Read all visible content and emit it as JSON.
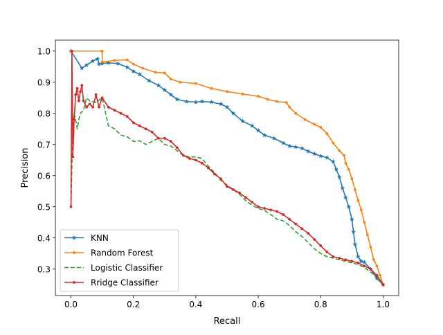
{
  "chart_data": {
    "type": "line",
    "title": "",
    "xlabel": "Recall",
    "ylabel": "Precision",
    "xlim": [
      -0.05,
      1.05
    ],
    "ylim": [
      0.215,
      1.035
    ],
    "xticks": [
      0.0,
      0.2,
      0.4,
      0.6,
      0.8,
      1.0
    ],
    "xtick_labels": [
      "0.0",
      "0.2",
      "0.4",
      "0.6",
      "0.8",
      "1.0"
    ],
    "yticks": [
      0.3,
      0.4,
      0.5,
      0.6,
      0.7,
      0.8,
      0.9,
      1.0
    ],
    "ytick_labels": [
      "0.3",
      "0.4",
      "0.5",
      "0.6",
      "0.7",
      "0.8",
      "0.9",
      "1.0"
    ],
    "grid": false,
    "legend_position": "lower-left",
    "series": [
      {
        "name": "KNN",
        "color": "#1f77b4",
        "linestyle": "solid",
        "marker": "star",
        "points": [
          [
            0.0,
            1.0
          ],
          [
            0.035,
            0.945
          ],
          [
            0.05,
            0.955
          ],
          [
            0.07,
            0.968
          ],
          [
            0.085,
            0.975
          ],
          [
            0.09,
            0.958
          ],
          [
            0.1,
            0.96
          ],
          [
            0.12,
            0.962
          ],
          [
            0.15,
            0.96
          ],
          [
            0.18,
            0.948
          ],
          [
            0.2,
            0.935
          ],
          [
            0.22,
            0.925
          ],
          [
            0.25,
            0.905
          ],
          [
            0.28,
            0.89
          ],
          [
            0.3,
            0.875
          ],
          [
            0.32,
            0.86
          ],
          [
            0.34,
            0.845
          ],
          [
            0.37,
            0.838
          ],
          [
            0.4,
            0.836
          ],
          [
            0.42,
            0.838
          ],
          [
            0.45,
            0.836
          ],
          [
            0.48,
            0.83
          ],
          [
            0.5,
            0.82
          ],
          [
            0.52,
            0.8
          ],
          [
            0.55,
            0.775
          ],
          [
            0.58,
            0.76
          ],
          [
            0.6,
            0.745
          ],
          [
            0.62,
            0.73
          ],
          [
            0.65,
            0.72
          ],
          [
            0.68,
            0.705
          ],
          [
            0.7,
            0.695
          ],
          [
            0.72,
            0.692
          ],
          [
            0.74,
            0.688
          ],
          [
            0.76,
            0.678
          ],
          [
            0.78,
            0.67
          ],
          [
            0.8,
            0.663
          ],
          [
            0.82,
            0.658
          ],
          [
            0.84,
            0.645
          ],
          [
            0.85,
            0.62
          ],
          [
            0.86,
            0.595
          ],
          [
            0.87,
            0.56
          ],
          [
            0.88,
            0.53
          ],
          [
            0.89,
            0.5
          ],
          [
            0.9,
            0.46
          ],
          [
            0.905,
            0.42
          ],
          [
            0.91,
            0.38
          ],
          [
            0.92,
            0.34
          ],
          [
            0.93,
            0.325
          ],
          [
            0.94,
            0.322
          ],
          [
            0.96,
            0.3
          ],
          [
            0.98,
            0.27
          ],
          [
            1.0,
            0.25
          ]
        ]
      },
      {
        "name": "Random Forest",
        "color": "#ff7f0e",
        "linestyle": "solid",
        "marker": "point",
        "points": [
          [
            0.0,
            1.0
          ],
          [
            0.1,
            1.0
          ],
          [
            0.1,
            0.965
          ],
          [
            0.14,
            0.97
          ],
          [
            0.18,
            0.972
          ],
          [
            0.2,
            0.958
          ],
          [
            0.23,
            0.945
          ],
          [
            0.27,
            0.932
          ],
          [
            0.3,
            0.93
          ],
          [
            0.32,
            0.91
          ],
          [
            0.35,
            0.9
          ],
          [
            0.4,
            0.896
          ],
          [
            0.45,
            0.88
          ],
          [
            0.5,
            0.87
          ],
          [
            0.55,
            0.862
          ],
          [
            0.6,
            0.855
          ],
          [
            0.63,
            0.845
          ],
          [
            0.66,
            0.838
          ],
          [
            0.69,
            0.835
          ],
          [
            0.7,
            0.82
          ],
          [
            0.72,
            0.8
          ],
          [
            0.75,
            0.78
          ],
          [
            0.78,
            0.765
          ],
          [
            0.8,
            0.755
          ],
          [
            0.82,
            0.735
          ],
          [
            0.84,
            0.705
          ],
          [
            0.86,
            0.68
          ],
          [
            0.875,
            0.665
          ],
          [
            0.88,
            0.64
          ],
          [
            0.89,
            0.62
          ],
          [
            0.9,
            0.59
          ],
          [
            0.91,
            0.555
          ],
          [
            0.92,
            0.52
          ],
          [
            0.93,
            0.49
          ],
          [
            0.94,
            0.45
          ],
          [
            0.95,
            0.41
          ],
          [
            0.96,
            0.37
          ],
          [
            0.97,
            0.33
          ],
          [
            0.98,
            0.31
          ],
          [
            0.99,
            0.28
          ],
          [
            1.0,
            0.25
          ]
        ]
      },
      {
        "name": "Logistic Classifier",
        "color": "#2ca02c",
        "linestyle": "dashed",
        "marker": "none",
        "points": [
          [
            0.0,
            0.5
          ],
          [
            0.005,
            0.72
          ],
          [
            0.01,
            0.8
          ],
          [
            0.015,
            0.78
          ],
          [
            0.02,
            0.75
          ],
          [
            0.025,
            0.78
          ],
          [
            0.03,
            0.8
          ],
          [
            0.04,
            0.81
          ],
          [
            0.05,
            0.85
          ],
          [
            0.06,
            0.84
          ],
          [
            0.08,
            0.835
          ],
          [
            0.1,
            0.85
          ],
          [
            0.12,
            0.76
          ],
          [
            0.14,
            0.75
          ],
          [
            0.16,
            0.73
          ],
          [
            0.18,
            0.725
          ],
          [
            0.2,
            0.71
          ],
          [
            0.22,
            0.712
          ],
          [
            0.24,
            0.7
          ],
          [
            0.26,
            0.71
          ],
          [
            0.28,
            0.72
          ],
          [
            0.3,
            0.7
          ],
          [
            0.32,
            0.695
          ],
          [
            0.34,
            0.68
          ],
          [
            0.36,
            0.665
          ],
          [
            0.38,
            0.66
          ],
          [
            0.4,
            0.66
          ],
          [
            0.42,
            0.655
          ],
          [
            0.44,
            0.63
          ],
          [
            0.46,
            0.61
          ],
          [
            0.48,
            0.585
          ],
          [
            0.5,
            0.57
          ],
          [
            0.52,
            0.555
          ],
          [
            0.54,
            0.54
          ],
          [
            0.56,
            0.52
          ],
          [
            0.58,
            0.505
          ],
          [
            0.6,
            0.495
          ],
          [
            0.62,
            0.488
          ],
          [
            0.64,
            0.475
          ],
          [
            0.66,
            0.46
          ],
          [
            0.68,
            0.455
          ],
          [
            0.7,
            0.44
          ],
          [
            0.72,
            0.42
          ],
          [
            0.74,
            0.405
          ],
          [
            0.76,
            0.385
          ],
          [
            0.78,
            0.365
          ],
          [
            0.8,
            0.35
          ],
          [
            0.82,
            0.34
          ],
          [
            0.84,
            0.335
          ],
          [
            0.86,
            0.33
          ],
          [
            0.88,
            0.325
          ],
          [
            0.9,
            0.32
          ],
          [
            0.92,
            0.315
          ],
          [
            0.94,
            0.305
          ],
          [
            0.96,
            0.29
          ],
          [
            0.98,
            0.275
          ],
          [
            1.0,
            0.25
          ]
        ]
      },
      {
        "name": "Rridge Classifier",
        "color": "#d62728",
        "linestyle": "solid",
        "marker": "point",
        "points": [
          [
            0.0,
            0.5
          ],
          [
            0.003,
            1.0
          ],
          [
            0.006,
            0.66
          ],
          [
            0.01,
            0.78
          ],
          [
            0.015,
            0.86
          ],
          [
            0.02,
            0.88
          ],
          [
            0.025,
            0.84
          ],
          [
            0.03,
            0.87
          ],
          [
            0.035,
            0.89
          ],
          [
            0.04,
            0.84
          ],
          [
            0.05,
            0.82
          ],
          [
            0.06,
            0.83
          ],
          [
            0.07,
            0.82
          ],
          [
            0.08,
            0.86
          ],
          [
            0.09,
            0.82
          ],
          [
            0.1,
            0.85
          ],
          [
            0.12,
            0.82
          ],
          [
            0.14,
            0.81
          ],
          [
            0.16,
            0.8
          ],
          [
            0.18,
            0.79
          ],
          [
            0.2,
            0.77
          ],
          [
            0.22,
            0.76
          ],
          [
            0.24,
            0.75
          ],
          [
            0.26,
            0.74
          ],
          [
            0.28,
            0.72
          ],
          [
            0.3,
            0.72
          ],
          [
            0.32,
            0.71
          ],
          [
            0.34,
            0.69
          ],
          [
            0.36,
            0.665
          ],
          [
            0.38,
            0.655
          ],
          [
            0.4,
            0.65
          ],
          [
            0.42,
            0.64
          ],
          [
            0.44,
            0.625
          ],
          [
            0.46,
            0.605
          ],
          [
            0.48,
            0.59
          ],
          [
            0.5,
            0.565
          ],
          [
            0.52,
            0.555
          ],
          [
            0.54,
            0.545
          ],
          [
            0.56,
            0.53
          ],
          [
            0.58,
            0.515
          ],
          [
            0.6,
            0.5
          ],
          [
            0.62,
            0.495
          ],
          [
            0.64,
            0.49
          ],
          [
            0.66,
            0.485
          ],
          [
            0.68,
            0.475
          ],
          [
            0.7,
            0.46
          ],
          [
            0.72,
            0.445
          ],
          [
            0.74,
            0.43
          ],
          [
            0.76,
            0.415
          ],
          [
            0.78,
            0.395
          ],
          [
            0.8,
            0.375
          ],
          [
            0.82,
            0.355
          ],
          [
            0.84,
            0.34
          ],
          [
            0.86,
            0.335
          ],
          [
            0.88,
            0.33
          ],
          [
            0.9,
            0.325
          ],
          [
            0.92,
            0.32
          ],
          [
            0.94,
            0.31
          ],
          [
            0.96,
            0.3
          ],
          [
            0.98,
            0.28
          ],
          [
            1.0,
            0.25
          ]
        ]
      }
    ]
  }
}
